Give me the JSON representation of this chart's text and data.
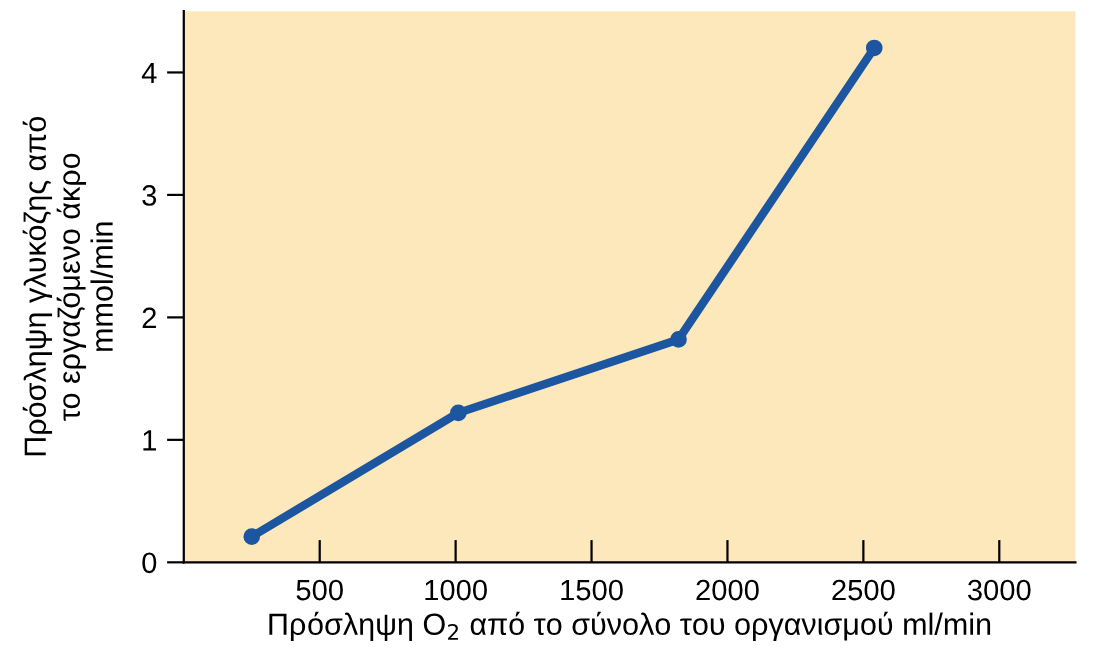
{
  "chart_data": {
    "type": "line",
    "xlabel": "Πρόσληψη O$_{2}$ από το σύνολο του οργανισμού ml/min",
    "ylabel": "Πρόσληψη γλυκόζης από\nτο εργαζόμενο άκρο\nmmol/min",
    "x": [
      250,
      1010,
      1820,
      2540
    ],
    "series": [
      {
        "color": "#1c55a0",
        "values": [
          0.21,
          1.22,
          1.82,
          4.2
        ]
      }
    ],
    "xlim": [
      0,
      3280
    ],
    "ylim": [
      0,
      4.5
    ],
    "xticks": [
      500,
      1000,
      1500,
      2000,
      2500,
      3000
    ],
    "yticks": [
      0,
      1,
      2,
      3,
      4
    ],
    "marker": "circle",
    "line_style": "solid",
    "grid": false,
    "legend": false
  }
}
